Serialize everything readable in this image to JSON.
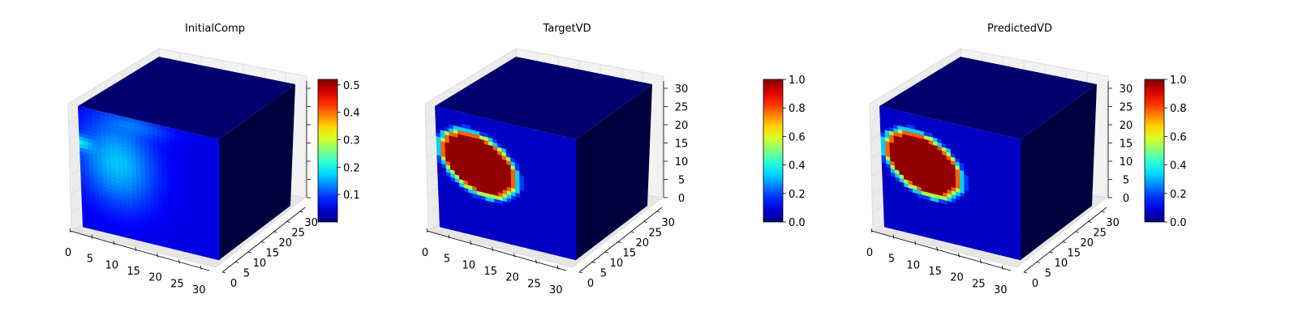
{
  "chart_data": [
    {
      "type": "voxel-3d",
      "title": "InitialComp",
      "x_ticks": [
        "0",
        "5",
        "10",
        "15",
        "20",
        "25",
        "30"
      ],
      "y_ticks": [
        "0",
        "5",
        "10",
        "15",
        "20",
        "25",
        "30"
      ],
      "z_ticks": [],
      "xlim": [
        0,
        32
      ],
      "ylim": [
        0,
        32
      ],
      "zlim": [
        0,
        32
      ],
      "colorbar": {
        "colormap": "jet",
        "range": [
          0.0,
          0.52
        ],
        "ticks": [
          "0.1",
          "0.2",
          "0.3",
          "0.4",
          "0.5"
        ]
      },
      "field": "diffuse"
    },
    {
      "type": "voxel-3d",
      "title": "TargetVD",
      "x_ticks": [
        "0",
        "5",
        "10",
        "15",
        "20",
        "25",
        "30"
      ],
      "y_ticks": [
        "0",
        "5",
        "10",
        "15",
        "20",
        "25",
        "30"
      ],
      "z_ticks": [
        "0",
        "5",
        "10",
        "15",
        "20",
        "25",
        "30"
      ],
      "xlim": [
        0,
        32
      ],
      "ylim": [
        0,
        32
      ],
      "zlim": [
        0,
        32
      ],
      "colorbar": {
        "colormap": "jet",
        "range": [
          0.0,
          1.0
        ],
        "ticks": [
          "0.0",
          "0.2",
          "0.4",
          "0.6",
          "0.8",
          "1.0"
        ]
      },
      "field": "blob"
    },
    {
      "type": "voxel-3d",
      "title": "PredictedVD",
      "x_ticks": [
        "0",
        "5",
        "10",
        "15",
        "20",
        "25",
        "30"
      ],
      "y_ticks": [
        "0",
        "5",
        "10",
        "15",
        "20",
        "25",
        "30"
      ],
      "z_ticks": [
        "0",
        "5",
        "10",
        "15",
        "20",
        "25",
        "30"
      ],
      "xlim": [
        0,
        32
      ],
      "ylim": [
        0,
        32
      ],
      "zlim": [
        0,
        32
      ],
      "colorbar": {
        "colormap": "jet",
        "range": [
          0.0,
          1.0
        ],
        "ticks": [
          "0.0",
          "0.2",
          "0.4",
          "0.6",
          "0.8",
          "1.0"
        ]
      },
      "field": "blob"
    }
  ]
}
